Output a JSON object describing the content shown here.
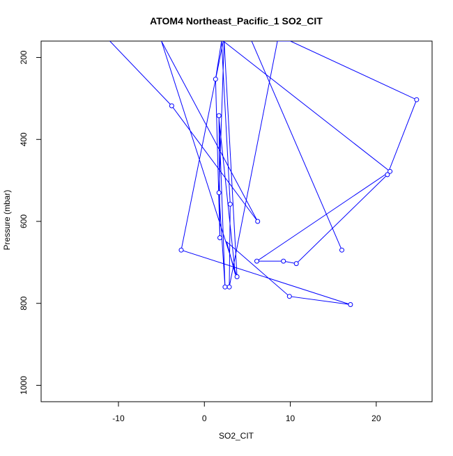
{
  "chart_data": {
    "type": "line",
    "title": "ATOM4 Northeast_Pacific_1 SO2_CIT",
    "xlabel": "SO2_CIT",
    "ylabel": "Pressure (mbar)",
    "xlim": [
      -19,
      26.5
    ],
    "ylim": [
      1040,
      160
    ],
    "y_inverted": true,
    "x_ticks": [
      -10,
      0,
      10,
      20
    ],
    "y_ticks": [
      200,
      400,
      600,
      800,
      1000
    ],
    "grid": false,
    "legend": "none",
    "series": [
      {
        "color": "#0000ff",
        "marker": "open-circle",
        "points": [
          {
            "x": -11.0,
            "y": 160,
            "marker": false
          },
          {
            "x": -3.8,
            "y": 318,
            "marker": true
          },
          {
            "x": 6.2,
            "y": 600,
            "marker": true
          },
          {
            "x": -5.0,
            "y": 160,
            "marker": false
          },
          {
            "x": 3.8,
            "y": 735,
            "marker": true
          },
          {
            "x": 2.3,
            "y": 160,
            "marker": false
          },
          {
            "x": 1.7,
            "y": 530,
            "marker": true
          },
          {
            "x": 2.4,
            "y": 760,
            "marker": true
          },
          {
            "x": 1.7,
            "y": 342,
            "marker": true
          },
          {
            "x": 1.8,
            "y": 640,
            "marker": true
          },
          {
            "x": 1.3,
            "y": 253,
            "marker": true
          },
          {
            "x": 2.0,
            "y": 160,
            "marker": false
          },
          {
            "x": 3.0,
            "y": 558,
            "marker": true
          },
          {
            "x": 2.9,
            "y": 760,
            "marker": true
          },
          {
            "x": 8.5,
            "y": 160,
            "marker": false
          },
          {
            "x": 10.0,
            "y": 160,
            "marker": false
          },
          {
            "x": 24.7,
            "y": 303,
            "marker": true
          },
          {
            "x": 21.3,
            "y": 486,
            "marker": true
          },
          {
            "x": 10.7,
            "y": 703,
            "marker": true
          },
          {
            "x": 9.2,
            "y": 697,
            "marker": true
          },
          {
            "x": 6.1,
            "y": 697,
            "marker": true
          },
          {
            "x": 21.6,
            "y": 478,
            "marker": true
          },
          {
            "x": 2.2,
            "y": 160,
            "marker": false
          },
          {
            "x": 2.2,
            "y": 160,
            "marker": false
          },
          {
            "x": -2.7,
            "y": 670,
            "marker": true
          },
          {
            "x": 17.0,
            "y": 803,
            "marker": true
          },
          {
            "x": 9.9,
            "y": 783,
            "marker": true
          },
          {
            "x": 2.6,
            "y": 650,
            "marker": false
          },
          {
            "x": 3.6,
            "y": 730,
            "marker": false
          },
          {
            "x": 1.7,
            "y": 350,
            "marker": false
          },
          {
            "x": 1.8,
            "y": 640,
            "marker": false
          }
        ]
      },
      {
        "color": "#0000ff",
        "marker": "open-circle",
        "points": [
          {
            "x": 5.5,
            "y": 160,
            "marker": false
          },
          {
            "x": 16.0,
            "y": 670,
            "marker": true
          }
        ]
      }
    ]
  }
}
